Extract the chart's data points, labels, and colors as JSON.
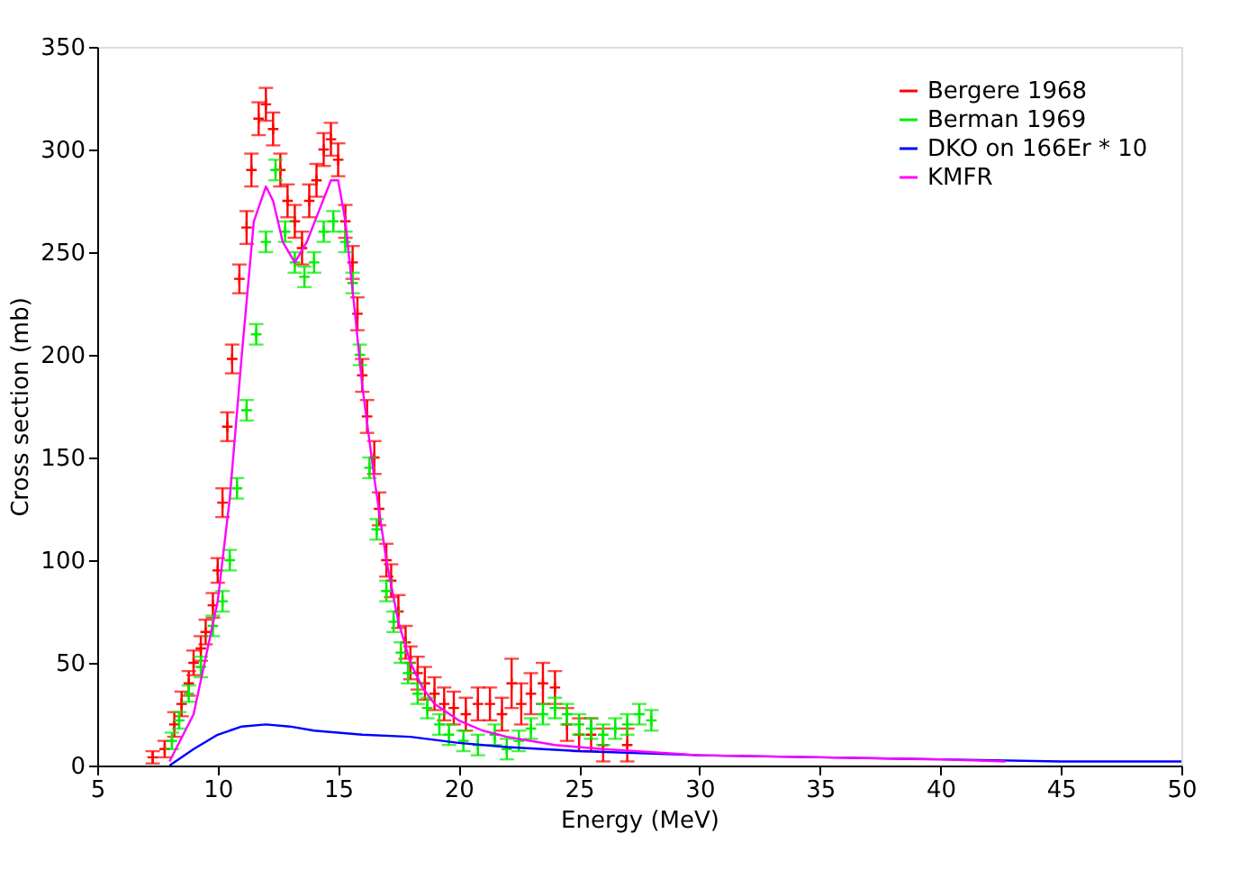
{
  "chart_data": {
    "type": "line",
    "xlabel": "Energy (MeV)",
    "ylabel": "Cross section (mb)",
    "xlim": [
      5,
      50
    ],
    "ylim": [
      0,
      350
    ],
    "xticks": [
      5,
      10,
      15,
      20,
      25,
      30,
      35,
      40,
      45,
      50
    ],
    "yticks": [
      0,
      50,
      100,
      150,
      200,
      250,
      300,
      350
    ],
    "grid": false,
    "legend": "top right",
    "series": [
      {
        "name": "Bergere 1968",
        "type": "scatter",
        "marker": "cross",
        "color": "#ff0000",
        "x": [
          7.3,
          7.8,
          8.2,
          8.5,
          8.8,
          9.0,
          9.3,
          9.5,
          9.8,
          10.0,
          10.2,
          10.4,
          10.6,
          10.9,
          11.2,
          11.4,
          11.7,
          12.0,
          12.3,
          12.6,
          12.9,
          13.2,
          13.5,
          13.8,
          14.1,
          14.4,
          14.7,
          15.0,
          15.3,
          15.6,
          15.8,
          16.0,
          16.2,
          16.5,
          16.7,
          17.0,
          17.2,
          17.5,
          17.8,
          18.0,
          18.3,
          18.6,
          19.0,
          19.4,
          19.8,
          20.3,
          20.8,
          21.3,
          21.8,
          22.2,
          22.6,
          23.0,
          23.5,
          24.0,
          24.5,
          25.0,
          25.5,
          26.0,
          27.0
        ],
        "values": [
          4,
          8,
          20,
          30,
          40,
          50,
          57,
          65,
          78,
          95,
          128,
          165,
          198,
          237,
          262,
          290,
          315,
          322,
          310,
          290,
          275,
          265,
          252,
          275,
          285,
          300,
          305,
          295,
          265,
          245,
          220,
          190,
          170,
          150,
          125,
          100,
          90,
          75,
          60,
          50,
          45,
          40,
          35,
          30,
          28,
          25,
          30,
          30,
          25,
          40,
          30,
          35,
          40,
          38,
          20,
          15,
          15,
          10,
          10
        ],
        "errors": [
          3,
          4,
          6,
          6,
          6,
          6,
          6,
          6,
          6,
          6,
          7,
          7,
          7,
          7,
          8,
          8,
          8,
          8,
          8,
          8,
          8,
          8,
          8,
          8,
          8,
          8,
          8,
          8,
          8,
          8,
          8,
          8,
          8,
          8,
          8,
          8,
          8,
          8,
          8,
          8,
          8,
          8,
          8,
          8,
          8,
          8,
          8,
          8,
          8,
          12,
          10,
          10,
          10,
          8,
          8,
          8,
          8,
          8,
          8
        ]
      },
      {
        "name": "Berman 1969",
        "type": "scatter",
        "marker": "cross",
        "color": "#00ee00",
        "x": [
          8.1,
          8.4,
          8.8,
          9.3,
          9.8,
          10.2,
          10.5,
          10.8,
          11.2,
          11.6,
          12.0,
          12.4,
          12.8,
          13.2,
          13.6,
          14.0,
          14.4,
          14.8,
          15.3,
          15.6,
          15.9,
          16.3,
          16.6,
          17.0,
          17.3,
          17.6,
          17.9,
          18.3,
          18.7,
          19.2,
          19.6,
          20.2,
          20.8,
          21.5,
          22.0,
          22.5,
          23.0,
          23.5,
          24.0,
          24.5,
          25.0,
          25.5,
          26.0,
          26.5,
          27.0,
          27.5,
          28.0
        ],
        "values": [
          12,
          22,
          35,
          48,
          68,
          80,
          100,
          135,
          173,
          210,
          255,
          290,
          260,
          245,
          238,
          245,
          260,
          265,
          255,
          235,
          200,
          145,
          115,
          85,
          70,
          55,
          45,
          35,
          28,
          20,
          15,
          12,
          10,
          15,
          8,
          12,
          18,
          25,
          28,
          25,
          20,
          18,
          15,
          18,
          20,
          25,
          22
        ],
        "errors": [
          4,
          4,
          4,
          5,
          5,
          5,
          5,
          5,
          5,
          5,
          5,
          5,
          5,
          5,
          5,
          5,
          5,
          5,
          5,
          5,
          5,
          5,
          5,
          5,
          5,
          5,
          5,
          5,
          5,
          5,
          5,
          5,
          5,
          5,
          5,
          5,
          5,
          5,
          5,
          5,
          5,
          5,
          5,
          5,
          5,
          5,
          5
        ]
      },
      {
        "name": "DKO on 166Er * 10",
        "marker": "none",
        "color": "#0000ff",
        "x": [
          8,
          9,
          10,
          11,
          12,
          13,
          14,
          16,
          18,
          20,
          22,
          25,
          30,
          35,
          40,
          45,
          50
        ],
        "values": [
          0,
          8,
          15,
          19,
          20,
          19,
          17,
          15,
          14,
          11,
          9,
          7,
          5,
          4,
          3,
          2,
          2
        ]
      },
      {
        "name": "KMFR",
        "marker": "none",
        "color": "#ff00ff",
        "x": [
          8,
          9,
          10,
          10.5,
          11,
          11.5,
          12,
          12.3,
          12.7,
          13.2,
          13.7,
          14.2,
          14.7,
          15,
          15.3,
          15.7,
          16,
          16.5,
          17,
          17.5,
          18,
          18.5,
          19,
          20,
          21,
          22,
          24,
          26,
          30,
          35,
          40,
          42.7
        ],
        "values": [
          2,
          25,
          80,
          130,
          200,
          265,
          282,
          275,
          255,
          245,
          255,
          270,
          285,
          285,
          265,
          220,
          185,
          140,
          100,
          70,
          50,
          38,
          30,
          22,
          17,
          14,
          10,
          8,
          5,
          4,
          3,
          2
        ]
      }
    ]
  }
}
